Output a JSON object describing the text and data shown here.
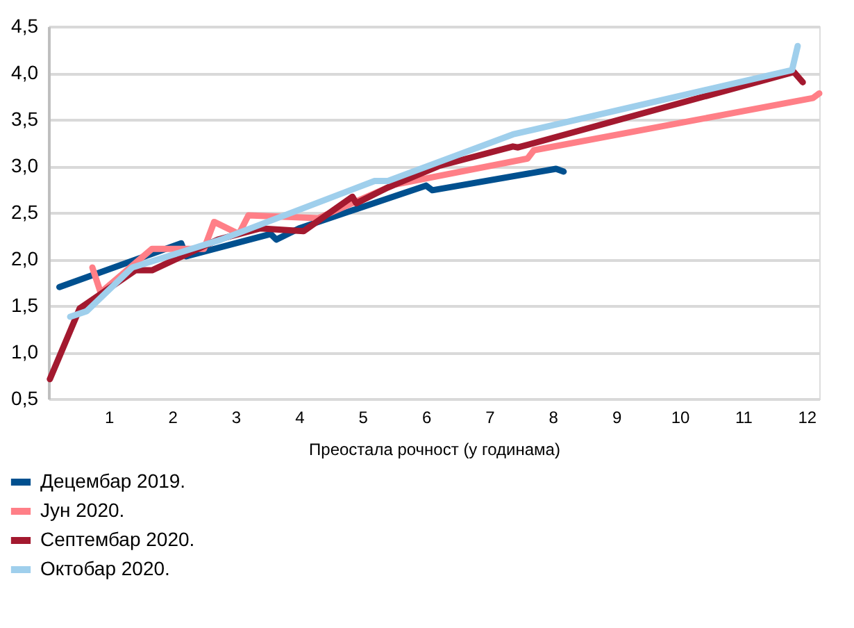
{
  "chart_data": {
    "type": "line",
    "xlabel": "Преостала рочност (у годинама)",
    "xlim": [
      0.05,
      12.2
    ],
    "xticks": [
      1,
      2,
      3,
      4,
      5,
      6,
      7,
      8,
      9,
      10,
      11,
      12
    ],
    "ylim": [
      0.5,
      4.5
    ],
    "yticks": [
      {
        "value": 0.5,
        "label": "0,5"
      },
      {
        "value": 1.0,
        "label": "1,0"
      },
      {
        "value": 1.5,
        "label": "1,5"
      },
      {
        "value": 2.0,
        "label": "2,0"
      },
      {
        "value": 2.5,
        "label": "2,5"
      },
      {
        "value": 3.0,
        "label": "3,0"
      },
      {
        "value": 3.5,
        "label": "3,5"
      },
      {
        "value": 4.0,
        "label": "4,0"
      },
      {
        "value": 4.5,
        "label": "4,5"
      }
    ],
    "grid": "y",
    "legend": "bottom left",
    "marker": "none",
    "line_style": "solid",
    "series": [
      {
        "name": "Децембар 2019.",
        "color": "#00508f",
        "x": [
          0.22,
          2.14,
          2.22,
          3.0,
          3.55,
          3.64,
          4.0,
          6.0,
          6.1,
          8.05,
          8.17
        ],
        "values": [
          1.7,
          2.17,
          2.03,
          2.17,
          2.27,
          2.21,
          2.33,
          2.79,
          2.74,
          2.97,
          2.94
        ]
      },
      {
        "name": "Јун 2020.",
        "color": "#ff7f87",
        "x": [
          0.74,
          0.87,
          1.68,
          2.5,
          2.66,
          3.05,
          3.2,
          4.3,
          5.5,
          7.6,
          7.7,
          12.1,
          12.2
        ],
        "values": [
          1.91,
          1.64,
          2.11,
          2.11,
          2.4,
          2.27,
          2.47,
          2.44,
          2.8,
          3.08,
          3.17,
          3.73,
          3.78
        ]
      },
      {
        "name": "Септембар 2020.",
        "color": "#a3192f",
        "x": [
          0.07,
          0.54,
          1.42,
          1.68,
          2.72,
          3.38,
          4.07,
          4.84,
          4.9,
          5.4,
          6.2,
          7.37,
          7.45,
          11.8,
          11.94
        ],
        "values": [
          0.71,
          1.47,
          1.88,
          1.88,
          2.21,
          2.33,
          2.3,
          2.67,
          2.6,
          2.77,
          3.0,
          3.21,
          3.2,
          4.01,
          3.9
        ]
      },
      {
        "name": "Октобар 2020.",
        "color": "#9fcfec",
        "x": [
          0.39,
          0.65,
          1.37,
          2.77,
          5.19,
          5.4,
          7.37,
          11.77,
          11.86
        ],
        "values": [
          1.38,
          1.44,
          1.91,
          2.21,
          2.84,
          2.84,
          3.34,
          4.03,
          4.29
        ]
      }
    ]
  }
}
